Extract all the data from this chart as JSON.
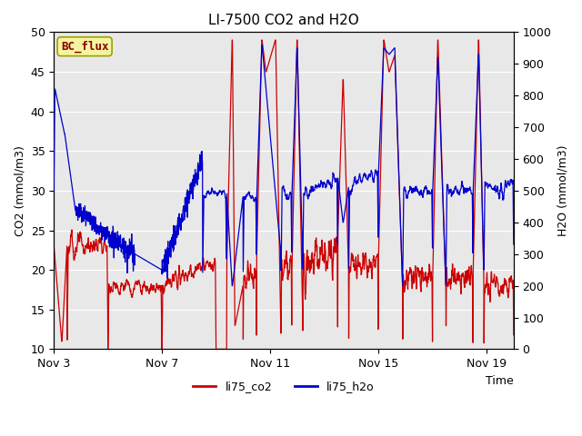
{
  "title": "LI-7500 CO2 and H2O",
  "xlabel": "Time",
  "ylabel_left": "CO2 (mmol/m3)",
  "ylabel_right": "H2O (mmol/m3)",
  "ylim_left": [
    10,
    50
  ],
  "ylim_right": [
    0,
    1000
  ],
  "yticks_left": [
    10,
    15,
    20,
    25,
    30,
    35,
    40,
    45,
    50
  ],
  "yticks_right": [
    0,
    100,
    200,
    300,
    400,
    500,
    600,
    700,
    800,
    900,
    1000
  ],
  "xtick_labels": [
    "Nov 3",
    "Nov 7",
    "Nov 11",
    "Nov 15",
    "Nov 19"
  ],
  "xtick_positions": [
    0,
    4,
    8,
    12,
    16
  ],
  "xlim": [
    0,
    17
  ],
  "annotation_text": "BC_flux",
  "co2_color": "#cc0000",
  "h2o_color": "#0000cc",
  "legend_labels": [
    "li75_co2",
    "li75_h2o"
  ],
  "plot_bg_color": "#e8e8e8",
  "grid_color": "#ffffff",
  "title_fontsize": 11,
  "axis_label_fontsize": 9,
  "tick_fontsize": 9,
  "legend_fontsize": 9,
  "annotation_fontsize": 9,
  "line_width": 0.9,
  "n_points": 2000,
  "x_start": 0,
  "x_end": 17
}
